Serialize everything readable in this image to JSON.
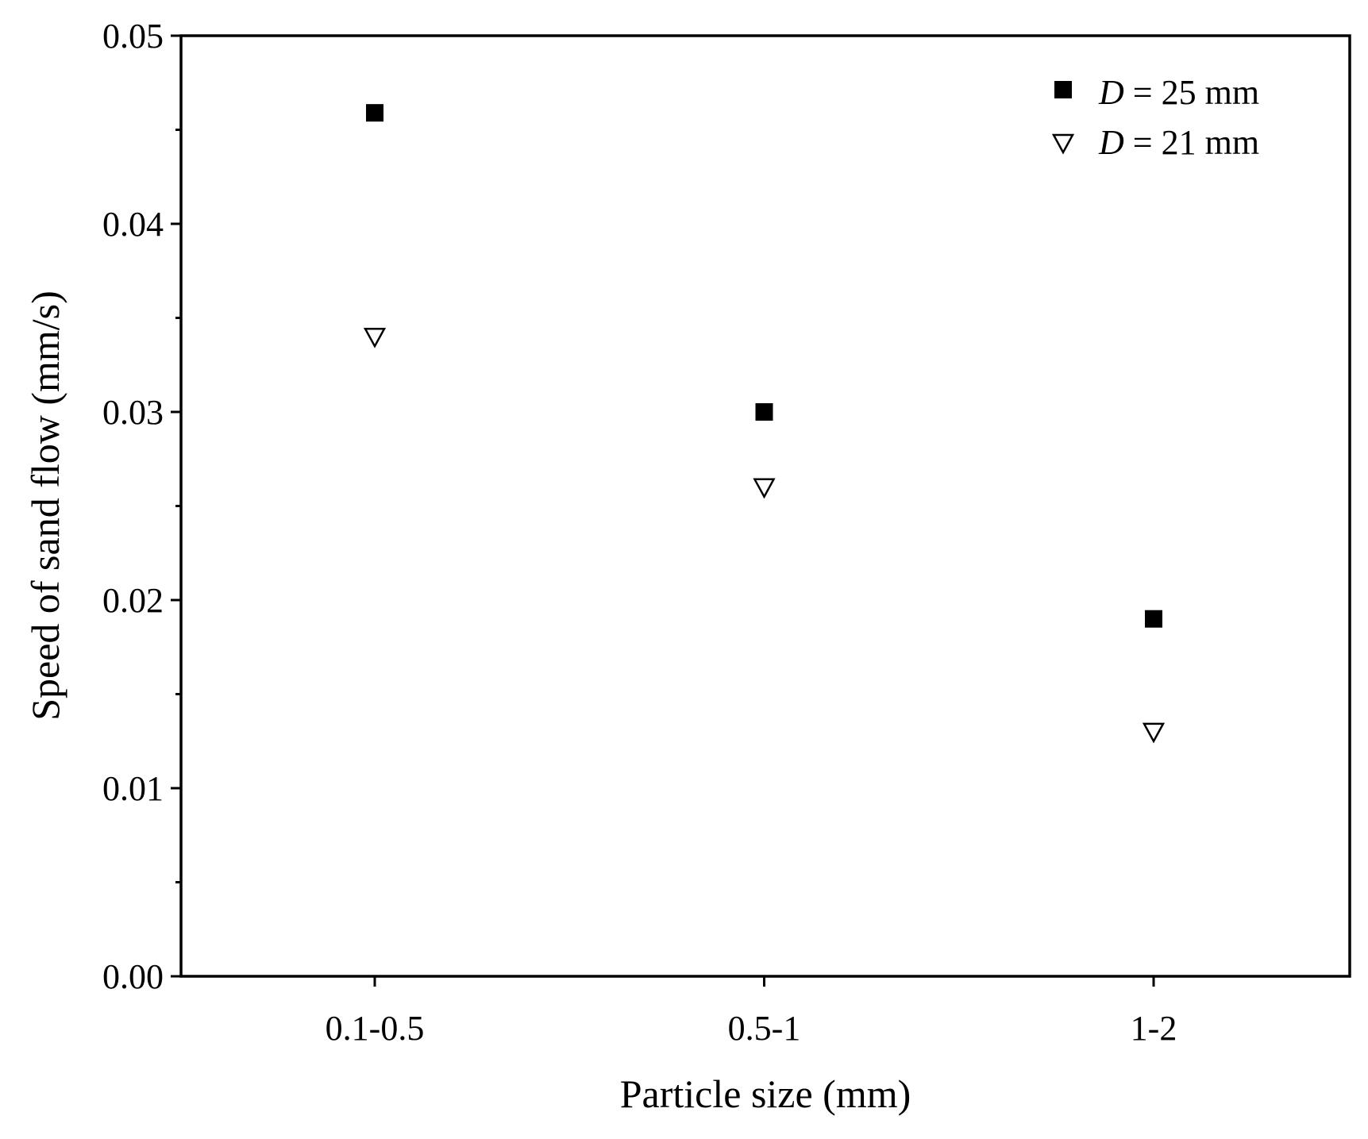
{
  "chart_data": {
    "type": "scatter",
    "xlabel": "Particle size (mm)",
    "ylabel": "Speed of sand flow (mm/s)",
    "categories": [
      "0.1-0.5",
      "0.5-1",
      "1-2"
    ],
    "ylim": [
      0,
      0.05
    ],
    "yticks": [
      "0.00",
      "0.01",
      "0.02",
      "0.03",
      "0.04",
      "0.05"
    ],
    "yminor_ticks": [
      0.005,
      0.015,
      0.025,
      0.035,
      0.045
    ],
    "grid": false,
    "legend_position": "top-right",
    "series": [
      {
        "name_italic": "D",
        "name_rest": " = 25 mm",
        "marker": "filled-square",
        "color": "#000000",
        "values": [
          0.0459,
          0.03,
          0.019
        ]
      },
      {
        "name_italic": "D",
        "name_rest": " = 21 mm",
        "marker": "open-down-triangle",
        "color": "#000000",
        "values": [
          0.034,
          0.026,
          0.013
        ]
      }
    ]
  }
}
